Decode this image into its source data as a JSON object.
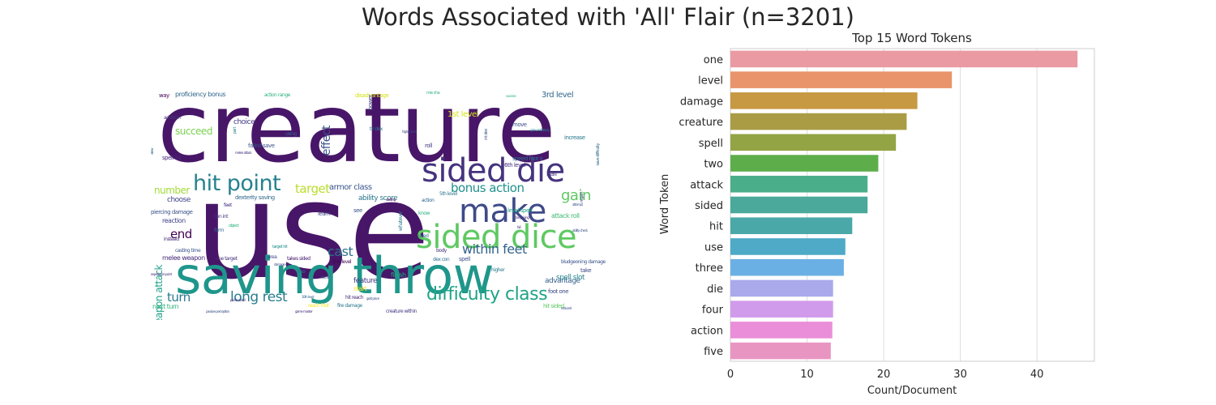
{
  "figure": {
    "title": "Words Associated with 'All' Flair (n=3201)"
  },
  "wordcloud": {
    "colors": {
      "dark_purple": "#481668",
      "mid_purple": "#3e4a89",
      "teal": "#26828e",
      "green_teal": "#2db27d",
      "light_green": "#73d055",
      "yellow": "#fde725"
    },
    "words": [
      {
        "text": "creature",
        "size": 118,
        "color": "#481668"
      },
      {
        "text": "use",
        "size": 165,
        "color": "#481668"
      },
      {
        "text": "saving throw",
        "size": 62,
        "color": "#1f968b"
      },
      {
        "text": "sided die",
        "size": 40,
        "color": "#46337e"
      },
      {
        "text": "make",
        "size": 40,
        "color": "#3e4a89"
      },
      {
        "text": "sided dice",
        "size": 40,
        "color": "#5ec962"
      },
      {
        "text": "hit point",
        "size": 27,
        "color": "#26828e"
      },
      {
        "text": "difficulty class",
        "size": 22,
        "color": "#20a386"
      },
      {
        "text": "long rest",
        "size": 17,
        "color": "#287d8e"
      },
      {
        "text": "within feet",
        "size": 16,
        "color": "#33638d"
      },
      {
        "text": "bonus action",
        "size": 15,
        "color": "#21918c"
      },
      {
        "text": "gain",
        "size": 18,
        "color": "#5ec962"
      },
      {
        "text": "target",
        "size": 15,
        "color": "#b8de29"
      },
      {
        "text": "cast",
        "size": 16,
        "color": "#2c728e"
      },
      {
        "text": "end",
        "size": 15,
        "color": "#440154"
      },
      {
        "text": "turn",
        "size": 15,
        "color": "#2a788e"
      },
      {
        "text": "effect",
        "size": 14,
        "color": "#3b528b"
      },
      {
        "text": "weapon attack",
        "size": 12,
        "color": "#1fa187"
      },
      {
        "text": "succeed",
        "size": 12,
        "color": "#7ad151"
      },
      {
        "text": "number",
        "size": 12,
        "color": "#a2da37"
      },
      {
        "text": "armor class",
        "size": 10,
        "color": "#39568c"
      },
      {
        "text": "ability score",
        "size": 9,
        "color": "#2a788e"
      },
      {
        "text": "1st level",
        "size": 10,
        "color": "#d8e219"
      },
      {
        "text": "3rd level",
        "size": 10,
        "color": "#31688e"
      },
      {
        "text": "choice",
        "size": 9,
        "color": "#443a83"
      },
      {
        "text": "proficiency bonus",
        "size": 8,
        "color": "#31688e"
      },
      {
        "text": "choose",
        "size": 9,
        "color": "#414487"
      },
      {
        "text": "reaction",
        "size": 8,
        "color": "#404688"
      },
      {
        "text": "advantage",
        "size": 9,
        "color": "#355f8d"
      },
      {
        "text": "feature",
        "size": 9,
        "color": "#453781"
      },
      {
        "text": "spell slot",
        "size": 9,
        "color": "#26828e"
      },
      {
        "text": "melee weapon",
        "size": 8,
        "color": "#472d7b"
      },
      {
        "text": "next turn",
        "size": 8,
        "color": "#2db27d"
      },
      {
        "text": "attack roll",
        "size": 8,
        "color": "#3fbc73"
      },
      {
        "text": "dexterity saving",
        "size": 7,
        "color": "#31688e"
      },
      {
        "text": "piercing damage",
        "size": 7,
        "color": "#3b528b"
      },
      {
        "text": "failed save",
        "size": 7,
        "color": "#3b528b"
      },
      {
        "text": "spell list",
        "size": 7,
        "color": "#472a7a"
      },
      {
        "text": "level spell",
        "size": 7,
        "color": "#21a685"
      },
      {
        "text": "half",
        "size": 8,
        "color": "#46337e"
      },
      {
        "text": "take",
        "size": 7,
        "color": "#3e4989"
      },
      {
        "text": "6th level",
        "size": 7,
        "color": "#46327e"
      },
      {
        "text": "speed foot",
        "size": 7,
        "color": "#2c728e"
      },
      {
        "text": "move",
        "size": 7,
        "color": "#3b528b"
      },
      {
        "text": "increase",
        "size": 7,
        "color": "#2a788e"
      },
      {
        "text": "finish",
        "size": 8,
        "color": "#22a884"
      },
      {
        "text": "start",
        "size": 8,
        "color": "#fde725"
      },
      {
        "text": "foot one",
        "size": 7,
        "color": "#3e4989"
      },
      {
        "text": "hit sided",
        "size": 7,
        "color": "#5ec962"
      },
      {
        "text": "bludgeoning damage",
        "size": 6,
        "color": "#3b528b"
      },
      {
        "text": "disadvantage",
        "size": 7,
        "color": "#d5e21a"
      },
      {
        "text": "way",
        "size": 7,
        "color": "#440154"
      },
      {
        "text": "action range",
        "size": 6,
        "color": "#2db27d"
      },
      {
        "text": "addition",
        "size": 6,
        "color": "#46337e"
      },
      {
        "text": "using",
        "size": 6,
        "color": "#31688e"
      },
      {
        "text": "power",
        "size": 7,
        "color": "#414487"
      },
      {
        "text": "roll",
        "size": 7,
        "color": "#443983"
      },
      {
        "text": "see",
        "size": 7,
        "color": "#3b528b"
      },
      {
        "text": "learn",
        "size": 7,
        "color": "#414487"
      },
      {
        "text": "area",
        "size": 6,
        "color": "#3e4989"
      },
      {
        "text": "also",
        "size": 6,
        "color": "#2a788e"
      },
      {
        "text": "con int",
        "size": 6,
        "color": "#453882"
      },
      {
        "text": "instead",
        "size": 6,
        "color": "#472c7a"
      },
      {
        "text": "form",
        "size": 6,
        "color": "#31688e"
      },
      {
        "text": "feet",
        "size": 6,
        "color": "#46327e"
      },
      {
        "text": "object",
        "size": 5,
        "color": "#2db27d"
      },
      {
        "text": "casting time",
        "size": 6,
        "color": "#3b528b"
      },
      {
        "text": "one target",
        "size": 6,
        "color": "#472d7b"
      },
      {
        "text": "2nd level",
        "size": 6,
        "color": "#440154"
      },
      {
        "text": "spell",
        "size": 7,
        "color": "#3b528b"
      },
      {
        "text": "5th level",
        "size": 6,
        "color": "#2a788e"
      },
      {
        "text": "dex con",
        "size": 6,
        "color": "#2c728e"
      },
      {
        "text": "hit reach",
        "size": 6,
        "color": "#472a7a"
      },
      {
        "text": "reach foot",
        "size": 6,
        "color": "#fde725"
      },
      {
        "text": "fire damage",
        "size": 6,
        "color": "#2a788e"
      },
      {
        "text": "creature within",
        "size": 6,
        "color": "#443983"
      },
      {
        "text": "takes sided",
        "size": 6,
        "color": "#481769"
      },
      {
        "text": "target hit",
        "size": 5,
        "color": "#21918c"
      },
      {
        "text": "body",
        "size": 6,
        "color": "#472c7a"
      },
      {
        "text": "used",
        "size": 6,
        "color": "#31688e"
      },
      {
        "text": "know",
        "size": 6,
        "color": "#2db27d"
      },
      {
        "text": "higher",
        "size": 6,
        "color": "#2a788e"
      },
      {
        "text": "whatever",
        "size": 6,
        "color": "#2a788e"
      },
      {
        "text": "action",
        "size": 6,
        "color": "#31688e"
      },
      {
        "text": "tir dex",
        "size": 6,
        "color": "#2a788e"
      },
      {
        "text": "int dex",
        "size": 5,
        "color": "#3b528b"
      },
      {
        "text": "success",
        "size": 4,
        "color": "#2db27d"
      },
      {
        "text": "part",
        "size": 5,
        "color": "#26828e"
      },
      {
        "text": "allow",
        "size": 4,
        "color": "#31688e"
      },
      {
        "text": "save difficulty",
        "size": 5,
        "color": "#31688e"
      },
      {
        "text": "gain proficiency",
        "size": 4,
        "color": "#26828e"
      },
      {
        "text": "regain",
        "size": 5,
        "color": "#3e4989"
      },
      {
        "text": "experience point",
        "size": 4,
        "color": "#46327e"
      },
      {
        "text": "passive perception",
        "size": 4,
        "color": "#3b528b"
      },
      {
        "text": "game master",
        "size": 4,
        "color": "#472d7b"
      },
      {
        "text": "points sided",
        "size": 4,
        "color": "#46337e"
      },
      {
        "text": "10th level",
        "size": 4,
        "color": "#31688e"
      },
      {
        "text": "reduced",
        "size": 4,
        "color": "#3b528b"
      },
      {
        "text": "gold piece",
        "size": 4,
        "color": "#3b528b"
      },
      {
        "text": "damage roll",
        "size": 4,
        "color": "#3e4989"
      },
      {
        "text": "foot str",
        "size": 4,
        "color": "#3b528b"
      },
      {
        "text": "starting",
        "size": 4,
        "color": "#440154"
      },
      {
        "text": "ability check",
        "size": 4,
        "color": "#3b528b"
      },
      {
        "text": "attempt",
        "size": 4,
        "color": "#3b528b"
      },
      {
        "text": "bargaining",
        "size": 4,
        "color": "#472d7b"
      },
      {
        "text": "fail",
        "size": 4,
        "color": "#46327e"
      },
      {
        "text": "higher level",
        "size": 4,
        "color": "#3e4989"
      },
      {
        "text": "mix cha",
        "size": 5,
        "color": "#2db27d"
      },
      {
        "text": "melee attack",
        "size": 4,
        "color": "#46337e"
      }
    ]
  },
  "chart_data": {
    "type": "bar",
    "orientation": "horizontal",
    "title": "Top 15 Word Tokens",
    "xlabel": "Count/Document",
    "ylabel": "Word Token",
    "xlim": [
      0,
      47.5
    ],
    "xticks": [
      0,
      10,
      20,
      30,
      40
    ],
    "grid": "vertical",
    "legend": "none",
    "categories": [
      "one",
      "level",
      "damage",
      "creature",
      "spell",
      "two",
      "attack",
      "sided",
      "hit",
      "use",
      "three",
      "die",
      "four",
      "action",
      "five"
    ],
    "values": [
      45.3,
      28.9,
      24.4,
      23.0,
      21.6,
      19.3,
      17.9,
      17.9,
      15.9,
      15.0,
      14.8,
      13.4,
      13.4,
      13.3,
      13.1
    ],
    "colors": [
      "#ea9aa3",
      "#e9946b",
      "#c79943",
      "#a99c45",
      "#93a444",
      "#5dae4b",
      "#4bae8a",
      "#4aa99a",
      "#4aa8a8",
      "#4eaac6",
      "#6ab0e5",
      "#aaa9ec",
      "#d19bec",
      "#ea8ed9",
      "#e995c2"
    ]
  }
}
